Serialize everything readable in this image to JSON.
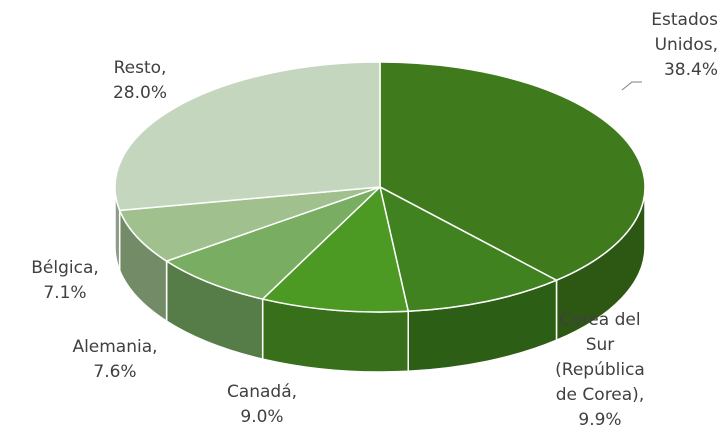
{
  "chart_data": {
    "type": "pie3d",
    "categories": [
      "Estados Unidos",
      "Corea del Sur (República de Corea)",
      "Canadá",
      "Alemania",
      "Bélgica",
      "Resto"
    ],
    "values": [
      38.4,
      9.9,
      9.0,
      7.6,
      7.1,
      28.0
    ],
    "value_labels": [
      "38.4%",
      "9.9%",
      "9.0%",
      "7.6%",
      "7.1%",
      "28.0%"
    ],
    "label_separator": ",",
    "colors": [
      "#3f7a1c",
      "#3f821f",
      "#4c9a24",
      "#78ad62",
      "#a0c18e",
      "#c4d7be"
    ]
  }
}
